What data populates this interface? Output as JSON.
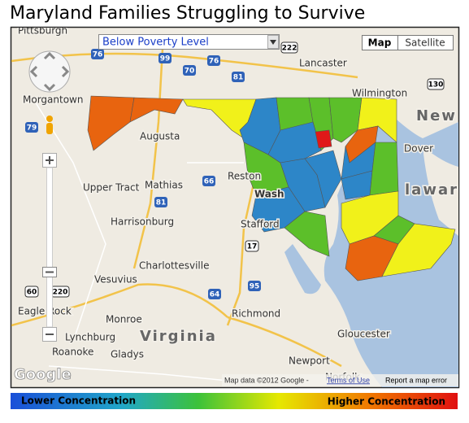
{
  "header": {
    "title": "Maryland Families Struggling to Survive"
  },
  "map": {
    "layer_select": "Below Poverty Level",
    "map_type_buttons": [
      "Map",
      "Satellite"
    ],
    "place_labels": [
      "Pittsburgh",
      "Lancaster",
      "Wilmington",
      "Morgantown",
      "New",
      "Dover",
      "Augusta",
      "Reston",
      "Wash",
      "Upper Tract",
      "Mathias",
      "Harrisonburg",
      "Stafford",
      "Charlottesville",
      "Vesuvius",
      "Eagle Rock",
      "Monroe",
      "Richmond",
      "Lynchburg",
      "Virginia",
      "Roanoke",
      "Gladys",
      "Gloucester",
      "Newport",
      "Norfolk",
      "laware"
    ],
    "road_shields": [
      "76",
      "99",
      "70",
      "76",
      "81",
      "222",
      "130",
      "79",
      "66",
      "81",
      "17",
      "64",
      "95",
      "60",
      "220"
    ],
    "attribution": {
      "logo": "Google",
      "data": "Map data ©2012 Google -",
      "terms": "Terms of Use",
      "report": "Report a map error"
    }
  },
  "legend": {
    "low": "Lower Concentration",
    "high": "Higher Concentration"
  }
}
